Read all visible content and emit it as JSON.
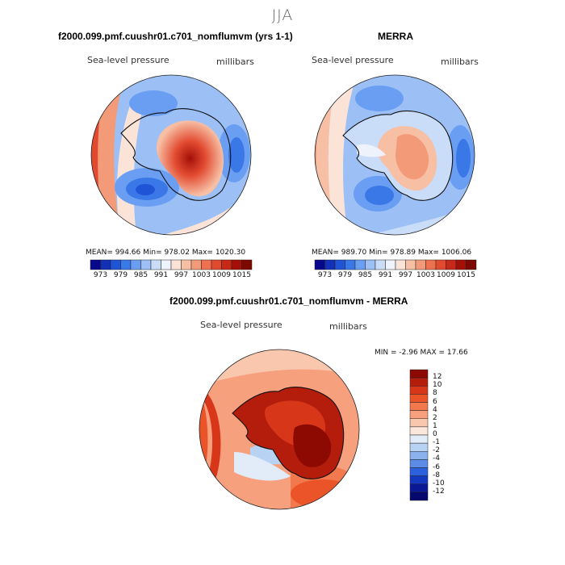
{
  "season": "JJA",
  "panels": {
    "model": {
      "title": "f2000.099.pmf.cuushr01.c701_nomflumvm (yrs 1-1)",
      "variable": "Sea-level pressure",
      "units": "millibars",
      "stats": {
        "mean": "994.66",
        "min": "978.02",
        "max": "1020.30"
      },
      "stats_text": "MEAN= 994.66   Min= 978.02   Max= 1020.30"
    },
    "obs": {
      "title": "MERRA",
      "variable": "Sea-level pressure",
      "units": "millibars",
      "stats": {
        "mean": "989.70",
        "min": "978.89",
        "max": "1006.06"
      },
      "stats_text": "MEAN= 989.70   Min= 978.89   Max= 1006.06"
    },
    "diff": {
      "title": "f2000.099.pmf.cuushr01.c701_nomflumvm - MERRA",
      "variable": "Sea-level pressure",
      "units": "millibars",
      "stats_text": "MIN =   -2.96  MAX =   17.66"
    }
  },
  "abs_colorbar": {
    "labels": [
      "973",
      "979",
      "985",
      "991",
      "997",
      "1003",
      "1009",
      "1015"
    ],
    "colors": [
      "#08088a",
      "#1230b8",
      "#1f54d6",
      "#3a78e8",
      "#6a9ef2",
      "#9cc0f6",
      "#c9dcf8",
      "#eef2fb",
      "#fbe3d8",
      "#f7c0a5",
      "#f39a78",
      "#ee7050",
      "#e24a30",
      "#c82818",
      "#a41008",
      "#7c0800"
    ]
  },
  "diff_colorbar": {
    "labels": [
      "12",
      "10",
      "8",
      "6",
      "4",
      "2",
      "1",
      "0",
      "-1",
      "-2",
      "-4",
      "-6",
      "-8",
      "-10",
      "-12"
    ],
    "colors": [
      "#8c0a02",
      "#b41c0c",
      "#d83618",
      "#ea5428",
      "#f2784e",
      "#f6a07e",
      "#f9c6ae",
      "#fbe6dc",
      "#e2ecf9",
      "#b8d2f4",
      "#8cb2ee",
      "#5c8ce6",
      "#2c60dc",
      "#1538c0",
      "#0a1896",
      "#05086c"
    ]
  },
  "chart_data": [
    {
      "type": "heatmap",
      "title": "f2000.099.pmf.cuushr01.c701_nomflumvm (yrs 1-1)",
      "variable": "Sea-level pressure",
      "units": "millibars",
      "projection": "south polar stereographic",
      "mean": 994.66,
      "min": 978.02,
      "max": 1020.3,
      "contour_levels": [
        973,
        979,
        985,
        991,
        997,
        1003,
        1009,
        1015
      ]
    },
    {
      "type": "heatmap",
      "title": "MERRA",
      "variable": "Sea-level pressure",
      "units": "millibars",
      "projection": "south polar stereographic",
      "mean": 989.7,
      "min": 978.89,
      "max": 1006.06,
      "contour_levels": [
        973,
        979,
        985,
        991,
        997,
        1003,
        1009,
        1015
      ]
    },
    {
      "type": "heatmap",
      "title": "f2000.099.pmf.cuushr01.c701_nomflumvm - MERRA",
      "variable": "Sea-level pressure",
      "units": "millibars",
      "projection": "south polar stereographic",
      "min": -2.96,
      "max": 17.66,
      "contour_levels": [
        -12,
        -10,
        -8,
        -6,
        -4,
        -2,
        -1,
        0,
        1,
        2,
        4,
        6,
        8,
        10,
        12
      ]
    }
  ]
}
